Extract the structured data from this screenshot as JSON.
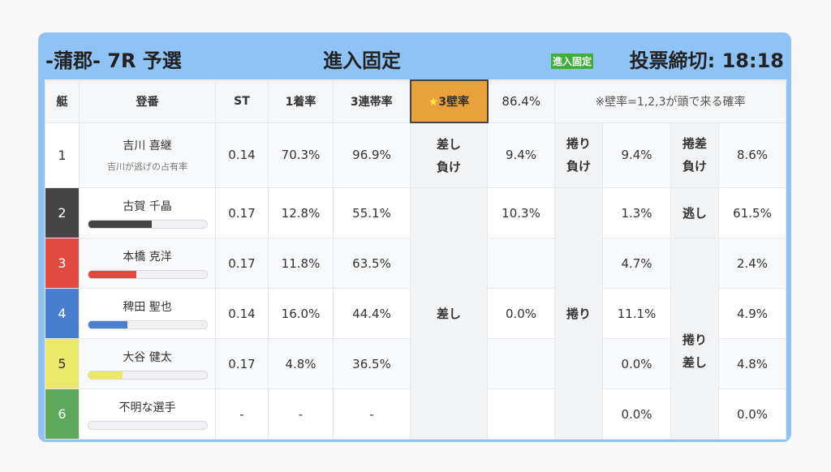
{
  "header": {
    "title": "-蒲郡- 7R 予選",
    "fixed": "進入固定",
    "badge": "進入固定",
    "deadline": "投票締切: 18:18"
  },
  "columns": {
    "boat": "艇",
    "name": "登番",
    "st": "ST",
    "win": "1着率",
    "top3": "3連帯率",
    "wall": "3壁率",
    "wall_star": "★",
    "wall_value": "86.4%",
    "note": "※壁率=1,2,3が頭で来る確率"
  },
  "rows": [
    {
      "boat": "1",
      "color": "#ffffff",
      "text": "#333333",
      "name": "吉川 喜継",
      "sub": "吉川が逃げの占有率",
      "st": "0.14",
      "win": "70.3%",
      "top3": "96.9%"
    },
    {
      "boat": "2",
      "color": "#444444",
      "text": "#ffffff",
      "name": "古賀 千晶",
      "bar": 54,
      "st": "0.17",
      "win": "12.8%",
      "top3": "55.1%"
    },
    {
      "boat": "3",
      "color": "#e04a40",
      "text": "#ffffff",
      "name": "本橋 克洋",
      "bar": 41,
      "st": "0.17",
      "win": "11.8%",
      "top3": "63.5%"
    },
    {
      "boat": "4",
      "color": "#4a7fd0",
      "text": "#ffffff",
      "name": "稗田 聖也",
      "bar": 33,
      "st": "0.14",
      "win": "16.0%",
      "top3": "44.4%"
    },
    {
      "boat": "5",
      "color": "#ece86a",
      "text": "#333333",
      "name": "大谷 健太",
      "bar": 29,
      "st": "0.17",
      "win": "4.8%",
      "top3": "36.5%"
    },
    {
      "boat": "6",
      "color": "#5ea85a",
      "text": "#ffffff",
      "name": "不明な選手",
      "bar": 0,
      "st": "-",
      "win": "-",
      "top3": "-"
    }
  ],
  "patterns": {
    "r1": {
      "a_label": "差し\n負け",
      "a_val": "9.4%",
      "b_label": "捲り\n負け",
      "b_val": "9.4%",
      "c_label": "捲差\n負け",
      "c_val": "8.6%"
    },
    "sashi": "差し",
    "sashi_vals": [
      "10.3%",
      "",
      "0.0%",
      "",
      ""
    ],
    "makuri": "捲り",
    "makuri_vals": [
      "1.3%",
      "4.7%",
      "11.1%",
      "0.0%",
      "0.0%"
    ],
    "nige": "逃し",
    "makurisashi": "捲り\n差し",
    "last_vals": [
      "61.5%",
      "2.4%",
      "4.9%",
      "4.8%",
      "0.0%"
    ]
  }
}
